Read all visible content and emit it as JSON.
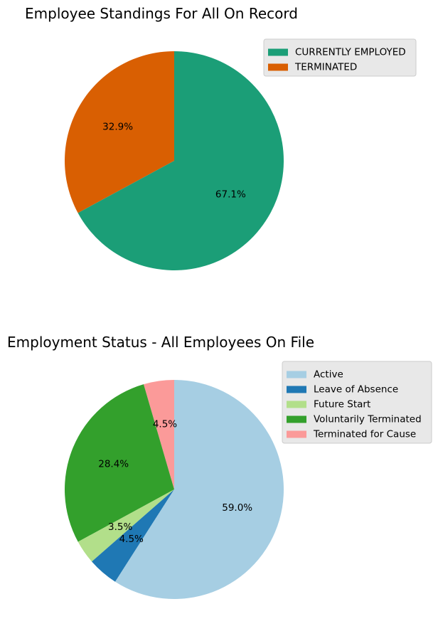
{
  "chart_data": [
    {
      "type": "pie",
      "title": "Employee Standings For All On Record",
      "categories": [
        "TERMINATED",
        "CURRENTLY EMPLOYED"
      ],
      "values": [
        32.9,
        67.1
      ],
      "labels": [
        "32.9%",
        "67.1%"
      ],
      "colors": [
        "#d95f02",
        "#1b9e77"
      ],
      "legend": {
        "placement": "top-right",
        "entries": [
          "CURRENTLY EMPLOYED",
          "TERMINATED"
        ],
        "colors": [
          "#1b9e77",
          "#d95f02"
        ]
      }
    },
    {
      "type": "pie",
      "title": "Employment Status - All Employees On File",
      "categories": [
        "Terminated for Cause",
        "Voluntarily Terminated",
        "Future Start",
        "Leave of Absence",
        "Active"
      ],
      "values": [
        4.5,
        28.4,
        3.5,
        4.5,
        59.0
      ],
      "labels": [
        "4.5%",
        "28.4%",
        "3.5%",
        "4.5%",
        "59.0%"
      ],
      "colors": [
        "#fb9a99",
        "#33a02c",
        "#b2df8a",
        "#1f78b4",
        "#a6cee3"
      ],
      "legend": {
        "placement": "top-right",
        "entries": [
          "Active",
          "Leave of Absence",
          "Future Start",
          "Voluntarily Terminated",
          "Terminated for Cause"
        ],
        "colors": [
          "#a6cee3",
          "#1f78b4",
          "#b2df8a",
          "#33a02c",
          "#fb9a99"
        ]
      }
    }
  ]
}
